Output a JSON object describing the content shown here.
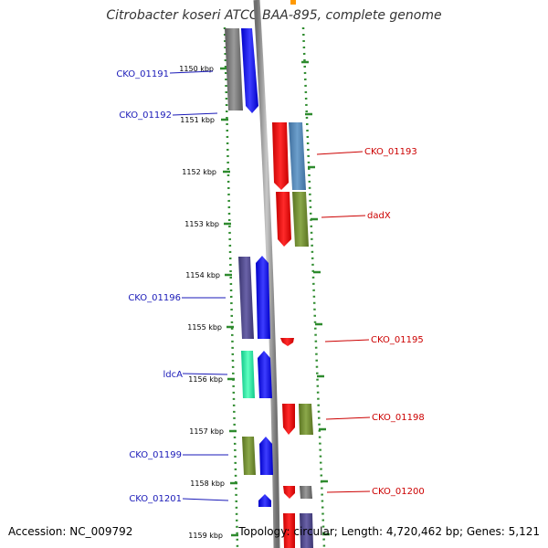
{
  "title": "Citrobacter koseri ATCC BAA-895, complete genome",
  "footer": {
    "accession": "Accession: NC_009792",
    "summary": "Topology: circular; Length: 4,720,462 bp; Genes: 5,121"
  },
  "ticks": [
    "1150 kbp",
    "1151 kbp",
    "1152 kbp",
    "1153 kbp",
    "1154 kbp",
    "1155 kbp",
    "1156 kbp",
    "1157 kbp",
    "1158 kbp",
    "1159 kbp"
  ],
  "left_labels": [
    "CKO_01191",
    "CKO_01192",
    "CKO_01196",
    "ldcA",
    "CKO_01199",
    "CKO_01201"
  ],
  "right_labels": [
    "CKO_01193",
    "dadX",
    "CKO_01195",
    "CKO_01198",
    "CKO_01200"
  ],
  "colors": {
    "left_label": "#1a1ab8",
    "right_label": "#cc0000",
    "dots": "#2e8b2e",
    "backbone": "#8a8a8a"
  }
}
